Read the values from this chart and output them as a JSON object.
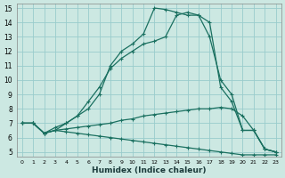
{
  "xlabel": "Humidex (Indice chaleur)",
  "bg_color": "#cce8e2",
  "grid_color": "#99cccc",
  "line_color": "#1a7060",
  "xlim": [
    0,
    23
  ],
  "ylim": [
    5,
    15
  ],
  "xticks": [
    0,
    1,
    2,
    3,
    4,
    5,
    6,
    7,
    8,
    9,
    10,
    11,
    12,
    13,
    14,
    15,
    16,
    17,
    18,
    19,
    20,
    21,
    22,
    23
  ],
  "yticks": [
    5,
    6,
    7,
    8,
    9,
    10,
    11,
    12,
    13,
    14,
    15
  ],
  "lines": [
    {
      "x": [
        0,
        1,
        2,
        3,
        4,
        5,
        6,
        7,
        8,
        9,
        10,
        11,
        12,
        13,
        14,
        15,
        16,
        17,
        18,
        19,
        20,
        21,
        22,
        23
      ],
      "y": [
        7.0,
        7.0,
        6.3,
        6.5,
        6.4,
        6.3,
        6.2,
        6.1,
        6.0,
        5.9,
        5.8,
        5.7,
        5.6,
        5.5,
        5.4,
        5.3,
        5.2,
        5.1,
        5.0,
        4.9,
        4.8,
        4.8,
        4.8,
        4.8
      ]
    },
    {
      "x": [
        0,
        1,
        2,
        3,
        4,
        5,
        6,
        7,
        8,
        9,
        10,
        11,
        12,
        13,
        14,
        15,
        16,
        17,
        18,
        19,
        20,
        21,
        22,
        23
      ],
      "y": [
        7.0,
        7.0,
        6.3,
        6.5,
        6.6,
        6.7,
        6.8,
        6.9,
        7.0,
        7.2,
        7.3,
        7.5,
        7.6,
        7.7,
        7.8,
        7.9,
        8.0,
        8.0,
        8.1,
        8.0,
        7.5,
        6.5,
        5.2,
        5.0
      ]
    },
    {
      "x": [
        0,
        1,
        2,
        3,
        4,
        5,
        6,
        7,
        8,
        9,
        10,
        11,
        12,
        13,
        14,
        15,
        16,
        17,
        18,
        19,
        20,
        21,
        22,
        23
      ],
      "y": [
        7.0,
        7.0,
        6.3,
        6.5,
        7.0,
        7.5,
        8.5,
        9.5,
        10.8,
        11.5,
        12.0,
        12.5,
        12.7,
        13.0,
        14.5,
        14.7,
        14.5,
        14.0,
        9.5,
        8.5,
        6.5,
        6.5,
        5.2,
        5.0
      ]
    },
    {
      "x": [
        0,
        1,
        2,
        3,
        4,
        5,
        6,
        7,
        8,
        9,
        10,
        11,
        12,
        13,
        14,
        15,
        16,
        17,
        18,
        19,
        20,
        21,
        22,
        23
      ],
      "y": [
        7.0,
        7.0,
        6.3,
        6.7,
        7.0,
        7.5,
        8.0,
        9.0,
        11.0,
        12.0,
        12.5,
        13.2,
        15.0,
        14.9,
        14.7,
        14.5,
        14.5,
        13.0,
        10.0,
        9.0,
        6.5,
        6.5,
        5.2,
        5.0
      ]
    }
  ]
}
